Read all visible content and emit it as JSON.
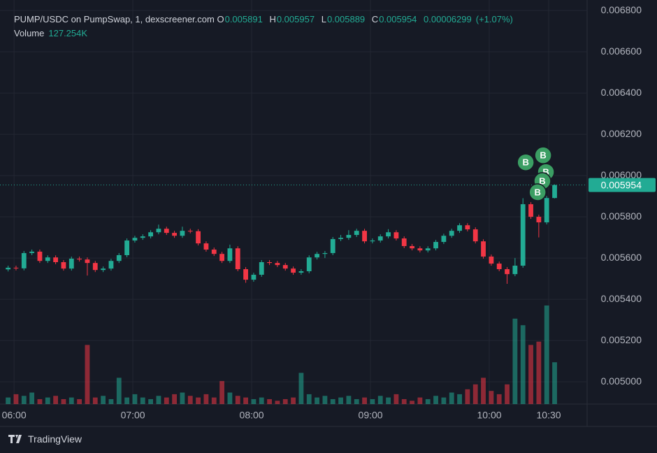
{
  "chart_data": {
    "type": "candlestick",
    "legend": {
      "title": "PUMP/USDC on PumpSwap, 1, dexscreener.com",
      "o": "O",
      "h": "H",
      "l": "L",
      "c": "C",
      "change": "0.00006299",
      "change_pct": "(+1.07%)",
      "volume_name": "Volume",
      "volume": "127.254K"
    },
    "up_color": "#22ab94",
    "down_color": "#f23645",
    "x": [
      357,
      361,
      365,
      369,
      373,
      377,
      381,
      385,
      389,
      393,
      397,
      401,
      405,
      409,
      413,
      417,
      421,
      425,
      429,
      433,
      437,
      441,
      445,
      449,
      453,
      457,
      461,
      465,
      469,
      473,
      477,
      481,
      485,
      489,
      493,
      497,
      501,
      505,
      509,
      513,
      517,
      521,
      525,
      529,
      533,
      537,
      541,
      545,
      549,
      553,
      557,
      561,
      565,
      569,
      573,
      577,
      581,
      585,
      589,
      593,
      597,
      601,
      605,
      609,
      613,
      617,
      621,
      625,
      629,
      633
    ],
    "open": [
      0.005545,
      0.005553,
      0.00555,
      0.005624,
      0.005631,
      0.005586,
      0.005603,
      0.00558,
      0.005549,
      0.005597,
      0.005593,
      0.005576,
      0.005542,
      0.005549,
      0.005586,
      0.005614,
      0.005685,
      0.005698,
      0.005705,
      0.005725,
      0.005742,
      0.005722,
      0.005708,
      0.005732,
      0.00573,
      0.005671,
      0.005641,
      0.00562,
      0.005586,
      0.005647,
      0.005546,
      0.005495,
      0.005519,
      0.00558,
      0.005576,
      0.005566,
      0.005549,
      0.005529,
      0.005536,
      0.005603,
      0.00562,
      0.005624,
      0.005692,
      0.005698,
      0.005712,
      0.005732,
      0.005681,
      0.005685,
      0.005705,
      0.005725,
      0.005695,
      0.005658,
      0.005647,
      0.005637,
      0.005647,
      0.005678,
      0.005708,
      0.005732,
      0.005759,
      0.005739,
      0.005681,
      0.005607,
      0.005573,
      0.005546,
      0.005522,
      0.005563,
      0.005861,
      0.0058,
      0.005773,
      0.005891
    ],
    "high": [
      0.005563,
      0.005563,
      0.005634,
      0.005641,
      0.005641,
      0.005613,
      0.005613,
      0.00559,
      0.005607,
      0.005607,
      0.005603,
      0.005586,
      0.005559,
      0.005596,
      0.005624,
      0.005695,
      0.005708,
      0.005715,
      0.005735,
      0.005762,
      0.005752,
      0.005732,
      0.005752,
      0.005742,
      0.00574,
      0.005681,
      0.005651,
      0.00563,
      0.005665,
      0.005657,
      0.005556,
      0.005529,
      0.00559,
      0.00559,
      0.005586,
      0.005576,
      0.005559,
      0.005546,
      0.005613,
      0.00563,
      0.005634,
      0.005702,
      0.005712,
      0.005735,
      0.005742,
      0.005742,
      0.005695,
      0.005715,
      0.00574,
      0.005735,
      0.005705,
      0.005668,
      0.005657,
      0.005657,
      0.005688,
      0.005718,
      0.005742,
      0.005769,
      0.005769,
      0.005749,
      0.005691,
      0.005617,
      0.005583,
      0.005556,
      0.0056,
      0.00589,
      0.005871,
      0.00581,
      0.005901,
      0.005957
    ],
    "low": [
      0.005535,
      0.00554,
      0.00554,
      0.005614,
      0.005576,
      0.005576,
      0.00557,
      0.005539,
      0.005539,
      0.005583,
      0.005515,
      0.005532,
      0.005532,
      0.005539,
      0.005576,
      0.005604,
      0.005675,
      0.005688,
      0.005695,
      0.005715,
      0.005712,
      0.005698,
      0.005698,
      0.00572,
      0.005661,
      0.005631,
      0.00561,
      0.005576,
      0.005576,
      0.005536,
      0.00548,
      0.005485,
      0.005509,
      0.005566,
      0.005556,
      0.005539,
      0.005519,
      0.005519,
      0.005526,
      0.005593,
      0.0056,
      0.005614,
      0.005682,
      0.005688,
      0.005702,
      0.005671,
      0.005671,
      0.005675,
      0.005695,
      0.005685,
      0.005648,
      0.005637,
      0.005627,
      0.005627,
      0.005637,
      0.005668,
      0.005698,
      0.005722,
      0.005729,
      0.005671,
      0.005597,
      0.005563,
      0.005536,
      0.005475,
      0.005512,
      0.005553,
      0.00579,
      0.0057,
      0.005763,
      0.005889
    ],
    "close": [
      0.005553,
      0.00555,
      0.005624,
      0.005631,
      0.005586,
      0.005603,
      0.00558,
      0.005549,
      0.005597,
      0.005593,
      0.005576,
      0.005542,
      0.005549,
      0.005586,
      0.005614,
      0.005685,
      0.005698,
      0.005705,
      0.005725,
      0.005742,
      0.005722,
      0.005708,
      0.005732,
      0.00573,
      0.005671,
      0.005641,
      0.00562,
      0.005586,
      0.005647,
      0.005546,
      0.005495,
      0.005519,
      0.00558,
      0.005576,
      0.005566,
      0.005549,
      0.005529,
      0.005536,
      0.005603,
      0.00562,
      0.005624,
      0.005692,
      0.005698,
      0.005712,
      0.005732,
      0.005681,
      0.005685,
      0.005705,
      0.005725,
      0.005695,
      0.005658,
      0.005647,
      0.005637,
      0.005647,
      0.005678,
      0.005708,
      0.005732,
      0.005759,
      0.005739,
      0.005681,
      0.005607,
      0.005573,
      0.005546,
      0.005522,
      0.005563,
      0.005861,
      0.0058,
      0.005773,
      0.005891,
      0.005954
    ],
    "volume": [
      20000,
      30000,
      25000,
      35000,
      15000,
      20000,
      25000,
      15000,
      20000,
      15000,
      180000,
      20000,
      25000,
      15000,
      80000,
      20000,
      30000,
      20000,
      15000,
      25000,
      20000,
      30000,
      35000,
      25000,
      20000,
      30000,
      20000,
      70000,
      35000,
      25000,
      20000,
      15000,
      20000,
      15000,
      10000,
      15000,
      20000,
      95000,
      30000,
      20000,
      25000,
      15000,
      20000,
      25000,
      15000,
      20000,
      15000,
      25000,
      20000,
      30000,
      15000,
      10000,
      20000,
      15000,
      25000,
      20000,
      35000,
      30000,
      45000,
      60000,
      80000,
      40000,
      30000,
      60000,
      260000,
      240000,
      180000,
      190000,
      300000,
      127254
    ],
    "buys": {
      "label": "B",
      "x": [
        618.4,
        627.2,
        628.6,
        626.8,
        624.4
      ],
      "prices": [
        0.006064,
        0.006098,
        0.006017,
        0.005973,
        0.005919
      ]
    },
    "xlim": [
      352.9,
      649.4
    ],
    "ylim": [
      0.004892,
      0.006851
    ],
    "xticks": [
      {
        "value": 360,
        "label": "06:00"
      },
      {
        "value": 420,
        "label": "07:00"
      },
      {
        "value": 480,
        "label": "08:00"
      },
      {
        "value": 540,
        "label": "09:00"
      },
      {
        "value": 600,
        "label": "10:00"
      },
      {
        "value": 630,
        "label": "10:30"
      }
    ],
    "yticks": [
      {
        "value": 0.005,
        "label": "0.005000"
      },
      {
        "value": 0.0052,
        "label": "0.005200"
      },
      {
        "value": 0.0054,
        "label": "0.005400"
      },
      {
        "value": 0.0056,
        "label": "0.005600"
      },
      {
        "value": 0.0058,
        "label": "0.005800"
      },
      {
        "value": 0.006,
        "label": "0.006000"
      },
      {
        "value": 0.0062,
        "label": "0.006200"
      },
      {
        "value": 0.0064,
        "label": "0.006400"
      },
      {
        "value": 0.0066,
        "label": "0.006600"
      },
      {
        "value": 0.0068,
        "label": "0.006800"
      }
    ],
    "grid": true,
    "brand": "TradingView"
  }
}
